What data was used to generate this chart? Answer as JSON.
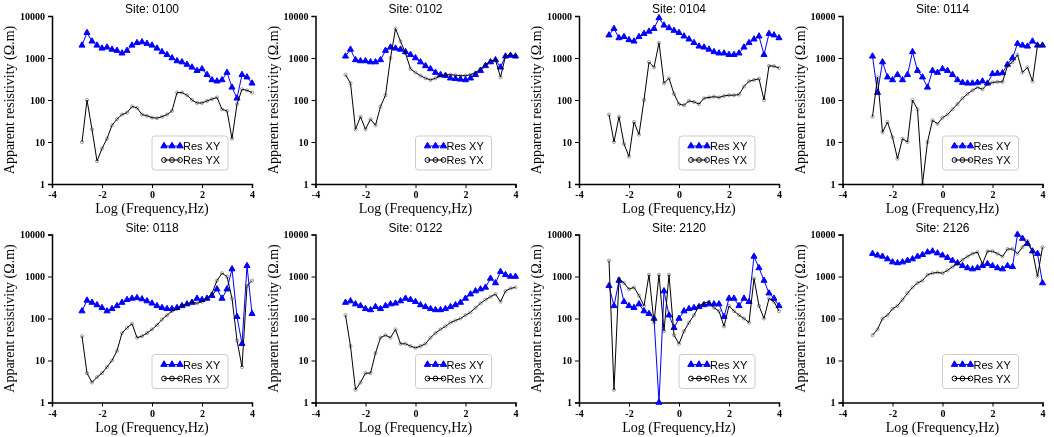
{
  "chart_data": [
    {
      "type": "line",
      "title": "Site: 0100",
      "xlabel": "Log (Frequency,Hz)",
      "ylabel": "Apparent resistivity (Ω.m)",
      "log": "y",
      "xlim": [
        -4,
        4
      ],
      "ylim": [
        1,
        10000
      ],
      "xticks": [
        -4,
        -2,
        0,
        2,
        4
      ],
      "yticks": [
        1,
        10,
        100,
        1000,
        10000
      ],
      "legend": "bottom right",
      "grid": false,
      "x": [
        -2.8,
        -2.6,
        -2.4,
        -2.2,
        -2.0,
        -1.8,
        -1.6,
        -1.4,
        -1.2,
        -1.0,
        -0.8,
        -0.6,
        -0.4,
        -0.2,
        0,
        0.2,
        0.4,
        0.6,
        0.8,
        1.0,
        1.2,
        1.4,
        1.6,
        1.8,
        2.0,
        2.2,
        2.4,
        2.6,
        2.8,
        3.0,
        3.2,
        3.4,
        3.6,
        3.8,
        4.0
      ],
      "series": [
        {
          "name": "Res XY",
          "color": "#0000ff",
          "marker": "triangle",
          "values": [
            2000,
            4000,
            2500,
            2000,
            1700,
            1800,
            1600,
            1500,
            1300,
            1500,
            2000,
            2300,
            2400,
            2200,
            2000,
            1700,
            1400,
            1200,
            1000,
            850,
            800,
            700,
            600,
            500,
            550,
            400,
            300,
            280,
            300,
            450,
            200,
            110,
            400,
            350,
            250
          ]
        },
        {
          "name": "Res YX",
          "color": "#000000",
          "marker": "circle",
          "values": [
            10,
            100,
            20,
            3.5,
            7,
            12,
            25,
            35,
            45,
            50,
            70,
            65,
            45,
            42,
            38,
            37,
            40,
            45,
            55,
            150,
            150,
            130,
            100,
            85,
            85,
            95,
            105,
            115,
            60,
            55,
            12,
            80,
            180,
            170,
            150
          ]
        }
      ]
    },
    {
      "type": "line",
      "title": "Site: 0102",
      "xlabel": "Log (Frequency,Hz)",
      "ylabel": "Apparent resistivity (Ω.m)",
      "log": "y",
      "xlim": [
        -4,
        4
      ],
      "ylim": [
        1,
        10000
      ],
      "xticks": [
        -4,
        -2,
        0,
        2,
        4
      ],
      "yticks": [
        1,
        10,
        100,
        1000,
        10000
      ],
      "legend": "bottom right",
      "grid": false,
      "x": [
        -2.8,
        -2.6,
        -2.4,
        -2.2,
        -2.0,
        -1.8,
        -1.6,
        -1.4,
        -1.2,
        -1.0,
        -0.8,
        -0.6,
        -0.4,
        -0.2,
        0,
        0.2,
        0.4,
        0.6,
        0.8,
        1.0,
        1.2,
        1.4,
        1.6,
        1.8,
        2.0,
        2.2,
        2.4,
        2.6,
        2.8,
        3.0,
        3.2,
        3.4,
        3.6,
        3.8,
        4.0
      ],
      "series": [
        {
          "name": "Res XY",
          "color": "#0000ff",
          "marker": "triangle",
          "values": [
            1100,
            1600,
            900,
            850,
            850,
            800,
            800,
            900,
            1500,
            1800,
            1700,
            1600,
            1400,
            1200,
            1000,
            800,
            650,
            550,
            450,
            400,
            380,
            330,
            320,
            310,
            300,
            330,
            400,
            500,
            650,
            800,
            900,
            600,
            1100,
            1150,
            1100
          ]
        },
        {
          "name": "Res YX",
          "color": "#000000",
          "marker": "circle",
          "values": [
            400,
            250,
            20,
            40,
            20,
            35,
            25,
            70,
            130,
            1000,
            5000,
            2500,
            1300,
            550,
            450,
            380,
            330,
            300,
            330,
            370,
            400,
            400,
            390,
            380,
            380,
            400,
            450,
            550,
            700,
            850,
            900,
            350,
            1100,
            1200,
            1100
          ]
        }
      ]
    },
    {
      "type": "line",
      "title": "Site: 0104",
      "xlabel": "Log (Frequency,Hz)",
      "ylabel": "Apparent resistivity (Ω.m)",
      "log": "y",
      "xlim": [
        -4,
        4
      ],
      "ylim": [
        1,
        10000
      ],
      "xticks": [
        -4,
        -2,
        0,
        2,
        4
      ],
      "yticks": [
        1,
        10,
        100,
        1000,
        10000
      ],
      "legend": "bottom right",
      "grid": false,
      "x": [
        -2.8,
        -2.6,
        -2.4,
        -2.2,
        -2.0,
        -1.8,
        -1.6,
        -1.4,
        -1.2,
        -1.0,
        -0.8,
        -0.6,
        -0.4,
        -0.2,
        0,
        0.2,
        0.4,
        0.6,
        0.8,
        1.0,
        1.2,
        1.4,
        1.6,
        1.8,
        2.0,
        2.2,
        2.4,
        2.6,
        2.8,
        3.0,
        3.2,
        3.4,
        3.6,
        3.8,
        4.0
      ],
      "series": [
        {
          "name": "Res XY",
          "color": "#0000ff",
          "marker": "triangle",
          "values": [
            3500,
            5000,
            3000,
            3200,
            2700,
            2500,
            3200,
            3800,
            4300,
            5000,
            9000,
            6000,
            5200,
            4500,
            4000,
            3300,
            2800,
            2300,
            1900,
            1800,
            1600,
            1400,
            1300,
            1300,
            1200,
            1200,
            1300,
            1800,
            2300,
            2800,
            3300,
            1200,
            3800,
            3500,
            3000
          ]
        },
        {
          "name": "Res YX",
          "color": "#000000",
          "marker": "circle",
          "values": [
            45,
            10,
            40,
            9,
            4.5,
            30,
            15,
            100,
            800,
            600,
            2300,
            250,
            330,
            140,
            80,
            75,
            95,
            90,
            80,
            110,
            115,
            120,
            115,
            125,
            130,
            130,
            135,
            210,
            280,
            300,
            320,
            100,
            650,
            640,
            580
          ]
        }
      ]
    },
    {
      "type": "line",
      "title": "Site: 0114",
      "xlabel": "Log (Frequency,Hz)",
      "ylabel": "Apparent resistivity (Ω.m)",
      "log": "y",
      "xlim": [
        -4,
        4
      ],
      "ylim": [
        1,
        10000
      ],
      "xticks": [
        -4,
        -2,
        0,
        2,
        4
      ],
      "yticks": [
        1,
        10,
        100,
        1000,
        10000
      ],
      "legend": "bottom right",
      "grid": false,
      "x": [
        -2.8,
        -2.6,
        -2.4,
        -2.2,
        -2.0,
        -1.8,
        -1.6,
        -1.4,
        -1.2,
        -1.0,
        -0.8,
        -0.6,
        -0.4,
        -0.2,
        0,
        0.2,
        0.4,
        0.6,
        0.8,
        1.0,
        1.2,
        1.4,
        1.6,
        1.8,
        2.0,
        2.2,
        2.4,
        2.6,
        2.8,
        3.0,
        3.2,
        3.4,
        3.6,
        3.8,
        4.0
      ],
      "series": [
        {
          "name": "Res XY",
          "color": "#0000ff",
          "marker": "triangle",
          "values": [
            1100,
            150,
            800,
            350,
            300,
            400,
            300,
            400,
            1400,
            500,
            350,
            200,
            500,
            450,
            550,
            500,
            400,
            300,
            260,
            250,
            250,
            260,
            280,
            250,
            420,
            430,
            440,
            700,
            1000,
            2200,
            2000,
            1900,
            2500,
            2000,
            2000
          ]
        },
        {
          "name": "Res YX",
          "color": "#000000",
          "marker": "circle",
          "values": [
            40,
            350,
            17,
            30,
            13,
            4,
            12,
            10,
            100,
            60,
            1,
            10,
            33,
            27,
            38,
            45,
            60,
            80,
            110,
            140,
            170,
            200,
            180,
            240,
            260,
            270,
            270,
            650,
            800,
            1200,
            450,
            600,
            280,
            2000,
            2000
          ]
        }
      ]
    },
    {
      "type": "line",
      "title": "Site: 0118",
      "xlabel": "Log (Frequency,Hz)",
      "ylabel": "Apparent resistivity (Ω.m)",
      "log": "y",
      "xlim": [
        -4,
        4
      ],
      "ylim": [
        1,
        10000
      ],
      "xticks": [
        -4,
        -2,
        0,
        2,
        4
      ],
      "yticks": [
        1,
        10,
        100,
        1000,
        10000
      ],
      "legend": "bottom right",
      "grid": false,
      "x": [
        -2.8,
        -2.6,
        -2.4,
        -2.2,
        -2.0,
        -1.8,
        -1.6,
        -1.4,
        -1.2,
        -1.0,
        -0.8,
        -0.6,
        -0.4,
        -0.2,
        0,
        0.2,
        0.4,
        0.6,
        0.8,
        1.0,
        1.2,
        1.4,
        1.6,
        1.8,
        2.0,
        2.2,
        2.4,
        2.6,
        2.8,
        3.0,
        3.2,
        3.4,
        3.6,
        3.8,
        4.0
      ],
      "series": [
        {
          "name": "Res XY",
          "color": "#0000ff",
          "marker": "triangle",
          "values": [
            150,
            270,
            240,
            210,
            180,
            150,
            170,
            200,
            240,
            280,
            300,
            310,
            290,
            260,
            230,
            200,
            180,
            170,
            170,
            180,
            200,
            220,
            240,
            300,
            280,
            300,
            350,
            500,
            300,
            500,
            1500,
            110,
            25,
            1800,
            130
          ]
        },
        {
          "name": "Res YX",
          "color": "#000000",
          "marker": "circle",
          "values": [
            38,
            5,
            3,
            4,
            5,
            7,
            10,
            17,
            45,
            60,
            75,
            35,
            38,
            45,
            55,
            70,
            95,
            120,
            150,
            170,
            200,
            220,
            250,
            230,
            250,
            300,
            400,
            800,
            1200,
            1000,
            300,
            30,
            7,
            600,
            800
          ]
        }
      ]
    },
    {
      "type": "line",
      "title": "Site: 0122",
      "xlabel": "Log (Frequency,Hz)",
      "ylabel": "Apparent resistivity (Ω.m)",
      "log": "y",
      "xlim": [
        -4,
        4
      ],
      "ylim": [
        1,
        10000
      ],
      "xticks": [
        -4,
        -2,
        0,
        2,
        4
      ],
      "yticks": [
        1,
        10,
        100,
        1000,
        10000
      ],
      "legend": "bottom right",
      "grid": false,
      "x": [
        -2.8,
        -2.6,
        -2.4,
        -2.2,
        -2.0,
        -1.8,
        -1.6,
        -1.4,
        -1.2,
        -1.0,
        -0.8,
        -0.6,
        -0.4,
        -0.2,
        0,
        0.2,
        0.4,
        0.6,
        0.8,
        1.0,
        1.2,
        1.4,
        1.6,
        1.8,
        2.0,
        2.2,
        2.4,
        2.6,
        2.8,
        3.0,
        3.2,
        3.4,
        3.6,
        3.8,
        4.0
      ],
      "series": [
        {
          "name": "Res XY",
          "color": "#0000ff",
          "marker": "triangle",
          "values": [
            240,
            260,
            220,
            200,
            170,
            160,
            190,
            170,
            200,
            220,
            230,
            260,
            300,
            280,
            250,
            210,
            190,
            170,
            160,
            160,
            170,
            190,
            210,
            240,
            300,
            380,
            450,
            500,
            550,
            900,
            700,
            1300,
            1100,
            1000,
            1000
          ]
        },
        {
          "name": "Res YX",
          "color": "#000000",
          "marker": "circle",
          "values": [
            120,
            22,
            2,
            3,
            5,
            5,
            15,
            35,
            40,
            35,
            55,
            25,
            25,
            22,
            20,
            22,
            25,
            35,
            45,
            55,
            65,
            80,
            90,
            100,
            120,
            140,
            180,
            230,
            280,
            330,
            380,
            250,
            450,
            520,
            550
          ]
        }
      ]
    },
    {
      "type": "line",
      "title": "Site: 2120",
      "xlabel": "Log (Frequency,Hz)",
      "ylabel": "Apparent resistivity (Ω.m)",
      "log": "y",
      "xlim": [
        -4,
        4
      ],
      "ylim": [
        1,
        10000
      ],
      "xticks": [
        -4,
        -2,
        0,
        2,
        4
      ],
      "yticks": [
        1,
        10,
        100,
        1000,
        10000
      ],
      "legend": "bottom right",
      "grid": false,
      "x": [
        -2.8,
        -2.6,
        -2.4,
        -2.2,
        -2.0,
        -1.8,
        -1.6,
        -1.4,
        -1.2,
        -1.0,
        -0.8,
        -0.6,
        -0.4,
        -0.2,
        0,
        0.2,
        0.4,
        0.6,
        0.8,
        1.0,
        1.2,
        1.4,
        1.6,
        1.8,
        2.0,
        2.2,
        2.4,
        2.6,
        2.8,
        3.0,
        3.2,
        3.4,
        3.6,
        3.8,
        4.0
      ],
      "series": [
        {
          "name": "Res XY",
          "color": "#0000ff",
          "marker": "triangle",
          "values": [
            600,
            200,
            800,
            250,
            200,
            180,
            220,
            150,
            130,
            100,
            1,
            450,
            120,
            60,
            100,
            150,
            170,
            180,
            190,
            210,
            220,
            220,
            220,
            110,
            300,
            300,
            200,
            300,
            250,
            3000,
            1600,
            800,
            400,
            300,
            200
          ]
        },
        {
          "name": "Res YX",
          "color": "#000000",
          "marker": "circle",
          "values": [
            2400,
            2,
            900,
            700,
            500,
            550,
            350,
            200,
            1100,
            80,
            1100,
            50,
            1100,
            40,
            25,
            50,
            80,
            120,
            200,
            230,
            250,
            180,
            150,
            65,
            200,
            150,
            120,
            100,
            80,
            900,
            200,
            100,
            300,
            250,
            150
          ]
        }
      ]
    },
    {
      "type": "line",
      "title": "Site: 2126",
      "xlabel": "Log (Frequency,Hz)",
      "ylabel": "Apparent resistivity (Ω.m)",
      "log": "y",
      "xlim": [
        -4,
        4
      ],
      "ylim": [
        1,
        10000
      ],
      "xticks": [
        -4,
        -2,
        0,
        2,
        4
      ],
      "yticks": [
        1,
        10,
        100,
        1000,
        10000
      ],
      "legend": "bottom right",
      "grid": false,
      "x": [
        -2.8,
        -2.6,
        -2.4,
        -2.2,
        -2.0,
        -1.8,
        -1.6,
        -1.4,
        -1.2,
        -1.0,
        -0.8,
        -0.6,
        -0.4,
        -0.2,
        0,
        0.2,
        0.4,
        0.6,
        0.8,
        1.0,
        1.2,
        1.4,
        1.6,
        1.8,
        2.0,
        2.2,
        2.4,
        2.6,
        2.8,
        3.0,
        3.2,
        3.4,
        3.6,
        3.8,
        4.0
      ],
      "series": [
        {
          "name": "Res XY",
          "color": "#0000ff",
          "marker": "triangle",
          "values": [
            3500,
            3200,
            3000,
            2600,
            2200,
            2100,
            2200,
            2400,
            2600,
            3000,
            3300,
            3800,
            4000,
            3600,
            3200,
            2800,
            2400,
            2100,
            1800,
            1600,
            1500,
            1600,
            1800,
            2000,
            1800,
            1600,
            1500,
            1800,
            1700,
            10000,
            8000,
            6000,
            4000,
            3500,
            700
          ]
        },
        {
          "name": "Res YX",
          "color": "#000000",
          "marker": "circle",
          "values": [
            40,
            55,
            100,
            120,
            170,
            200,
            280,
            400,
            550,
            700,
            800,
            1100,
            1200,
            1250,
            1200,
            1400,
            1700,
            2000,
            2500,
            3000,
            3500,
            3800,
            2000,
            4000,
            4000,
            3500,
            3000,
            4500,
            4500,
            3500,
            5000,
            7000,
            4000,
            1000,
            5000
          ]
        }
      ]
    }
  ]
}
